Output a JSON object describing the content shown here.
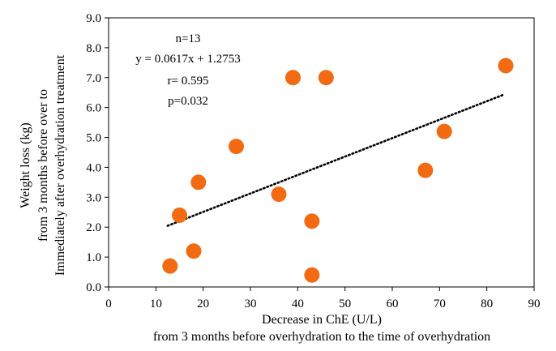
{
  "chart_data": {
    "type": "scatter",
    "title": "",
    "xlabel": "Decrease in ChE (U/L)",
    "xlabel_sub": "from 3 months before overhydration to the time of overhydration",
    "ylabel_lines": [
      "Weight loss (kg)",
      "from 3 months before over to",
      "Immediately after overhydration treatment"
    ],
    "xlim": [
      0,
      90
    ],
    "ylim": [
      0,
      9
    ],
    "x_ticks": [
      0,
      10,
      20,
      30,
      40,
      50,
      60,
      70,
      80,
      90
    ],
    "y_ticks": [
      "0.0",
      "1.0",
      "2.0",
      "3.0",
      "4.0",
      "5.0",
      "6.0",
      "7.0",
      "8.0",
      "9.0"
    ],
    "grid": false,
    "points": [
      {
        "x": 13,
        "y": 0.7
      },
      {
        "x": 15,
        "y": 2.4
      },
      {
        "x": 18,
        "y": 1.2
      },
      {
        "x": 19,
        "y": 3.5
      },
      {
        "x": 27,
        "y": 4.7
      },
      {
        "x": 36,
        "y": 3.1
      },
      {
        "x": 39,
        "y": 7.0
      },
      {
        "x": 43,
        "y": 2.2
      },
      {
        "x": 43,
        "y": 0.4
      },
      {
        "x": 46,
        "y": 7.0
      },
      {
        "x": 67,
        "y": 3.9
      },
      {
        "x": 71,
        "y": 5.2
      },
      {
        "x": 84,
        "y": 7.4
      }
    ],
    "trendline": {
      "style": "dotted",
      "slope": 0.0617,
      "intercept": 1.2753,
      "x_range": [
        12.5,
        83.7
      ]
    },
    "annotations": [
      "n=13",
      "y = 0.0617x + 1.2753",
      "r= 0.595",
      "p=0.032"
    ],
    "colors": {
      "marker": "#f26b12",
      "axis": "#000000",
      "trendline": "#000000"
    }
  }
}
